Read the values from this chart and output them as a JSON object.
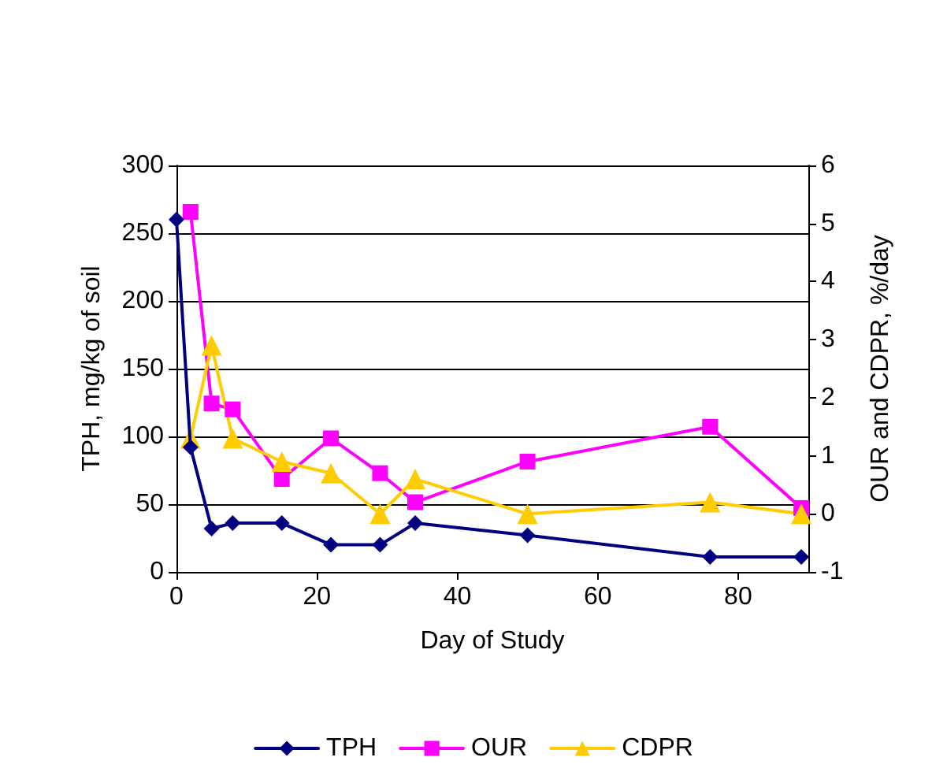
{
  "chart_data": {
    "type": "line",
    "xlabel": "Day of Study",
    "ylabel": "TPH, mg/kg of soil",
    "y2label": "OUR and CDPR, %/day",
    "xlim": [
      0,
      90
    ],
    "xticks": [
      0,
      20,
      40,
      60,
      80
    ],
    "ylim": [
      0,
      300
    ],
    "yticks": [
      0,
      50,
      100,
      150,
      200,
      250,
      300
    ],
    "y2lim": [
      -1,
      6
    ],
    "y2ticks": [
      -1,
      0,
      1,
      2,
      3,
      4,
      5,
      6
    ],
    "grid": "y",
    "legend": "bottom",
    "series": [
      {
        "name": "TPH",
        "color": "#000080",
        "marker": "diamond",
        "x": [
          0,
          2,
          5,
          8,
          15,
          22,
          29,
          34,
          50,
          76,
          89
        ],
        "values": [
          260,
          92,
          32,
          36,
          36,
          20,
          20,
          36,
          27,
          11,
          11
        ]
      },
      {
        "name": "OUR",
        "color": "#ff00ff",
        "marker": "square",
        "axis": "y2",
        "x": [
          2,
          5,
          8,
          15,
          22,
          29,
          34,
          50,
          76,
          89
        ],
        "values": [
          5.2,
          1.9,
          1.8,
          0.6,
          1.3,
          0.7,
          0.2,
          0.9,
          1.5,
          0.1
        ]
      },
      {
        "name": "CDPR",
        "color": "#ffcc00",
        "marker": "triangle",
        "axis": "y2",
        "x": [
          2,
          5,
          8,
          15,
          22,
          29,
          34,
          50,
          76,
          89
        ],
        "values": [
          1.3,
          2.9,
          1.3,
          0.9,
          0.7,
          0.0,
          0.6,
          0.0,
          0.2,
          0.0
        ]
      }
    ]
  }
}
